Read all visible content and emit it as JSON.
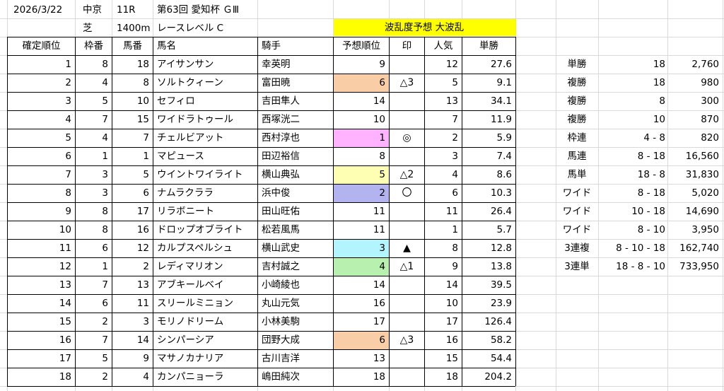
{
  "header": {
    "date": "2026/3/22",
    "venue": "中京",
    "race_no": "11R",
    "race_name": "第63回 愛知杯 ＧⅢ",
    "surface": "芝",
    "distance": "1400m",
    "race_level": "レースレベル C",
    "forecast_banner": "波乱度予想 大波乱"
  },
  "columns": [
    "確定順位",
    "枠番",
    "馬番",
    "馬名",
    "騎手",
    "予想順位",
    "印",
    "人気",
    "単勝"
  ],
  "rows": [
    {
      "finish": "1",
      "waku": "8",
      "umaban": "18",
      "horse": "アイサンサン",
      "jockey": "幸英明",
      "pred": "9",
      "mark": "",
      "pop": "12",
      "odds": "27.6",
      "pred_color": ""
    },
    {
      "finish": "2",
      "waku": "4",
      "umaban": "8",
      "horse": "ソルトクィーン",
      "jockey": "富田暁",
      "pred": "6",
      "mark": "△3",
      "pop": "5",
      "odds": "9.1",
      "pred_color": "#f9cda6"
    },
    {
      "finish": "3",
      "waku": "5",
      "umaban": "10",
      "horse": "セフィロ",
      "jockey": "吉田隼人",
      "pred": "14",
      "mark": "",
      "pop": "13",
      "odds": "34.1",
      "pred_color": ""
    },
    {
      "finish": "4",
      "waku": "7",
      "umaban": "15",
      "horse": "ワイドラトゥール",
      "jockey": "西塚洸二",
      "pred": "10",
      "mark": "",
      "pop": "7",
      "odds": "11.9",
      "pred_color": ""
    },
    {
      "finish": "5",
      "waku": "4",
      "umaban": "7",
      "horse": "チェルビアット",
      "jockey": "西村淳也",
      "pred": "1",
      "mark": "◎",
      "pop": "2",
      "odds": "5.9",
      "pred_color": "#ffb3ff"
    },
    {
      "finish": "6",
      "waku": "1",
      "umaban": "1",
      "horse": "マピュース",
      "jockey": "田辺裕信",
      "pred": "8",
      "mark": "",
      "pop": "3",
      "odds": "7.4",
      "pred_color": ""
    },
    {
      "finish": "7",
      "waku": "3",
      "umaban": "5",
      "horse": "ウイントワイライト",
      "jockey": "横山典弘",
      "pred": "5",
      "mark": "△2",
      "pop": "4",
      "odds": "8.6",
      "pred_color": "#ffffb3"
    },
    {
      "finish": "8",
      "waku": "3",
      "umaban": "6",
      "horse": "ナムラクララ",
      "jockey": "浜中俊",
      "pred": "2",
      "mark": "〇",
      "pop": "6",
      "odds": "10.3",
      "pred_color": "#b3b3f0"
    },
    {
      "finish": "9",
      "waku": "8",
      "umaban": "17",
      "horse": "リラボニート",
      "jockey": "田山旺佑",
      "pred": "11",
      "mark": "",
      "pop": "11",
      "odds": "26.4",
      "pred_color": ""
    },
    {
      "finish": "10",
      "waku": "8",
      "umaban": "16",
      "horse": "ドロップオブライト",
      "jockey": "松若風馬",
      "pred": "11",
      "mark": "",
      "pop": "1",
      "odds": "5.7",
      "pred_color": ""
    },
    {
      "finish": "11",
      "waku": "6",
      "umaban": "12",
      "horse": "カルプスペルシュ",
      "jockey": "横山武史",
      "pred": "3",
      "mark": "▲",
      "pop": "8",
      "odds": "12.8",
      "pred_color": "#b3f5ff"
    },
    {
      "finish": "12",
      "waku": "1",
      "umaban": "2",
      "horse": "レディマリオン",
      "jockey": "吉村誠之",
      "pred": "4",
      "mark": "△1",
      "pop": "9",
      "odds": "13.8",
      "pred_color": "#b8f0b0"
    },
    {
      "finish": "13",
      "waku": "7",
      "umaban": "13",
      "horse": "アブキールベイ",
      "jockey": "小崎綾也",
      "pred": "14",
      "mark": "",
      "pop": "14",
      "odds": "39.5",
      "pred_color": ""
    },
    {
      "finish": "14",
      "waku": "6",
      "umaban": "11",
      "horse": "スリールミニョン",
      "jockey": "丸山元気",
      "pred": "16",
      "mark": "",
      "pop": "10",
      "odds": "23.9",
      "pred_color": ""
    },
    {
      "finish": "15",
      "waku": "2",
      "umaban": "3",
      "horse": "モリノドリーム",
      "jockey": "小林美駒",
      "pred": "17",
      "mark": "",
      "pop": "17",
      "odds": "126.4",
      "pred_color": ""
    },
    {
      "finish": "16",
      "waku": "7",
      "umaban": "14",
      "horse": "シンパーシア",
      "jockey": "団野大成",
      "pred": "6",
      "mark": "△3",
      "pop": "16",
      "odds": "58.2",
      "pred_color": "#f9cda6"
    },
    {
      "finish": "17",
      "waku": "5",
      "umaban": "9",
      "horse": "マサノカナリア",
      "jockey": "古川吉洋",
      "pred": "13",
      "mark": "",
      "pop": "15",
      "odds": "54.4",
      "pred_color": ""
    },
    {
      "finish": "18",
      "waku": "2",
      "umaban": "4",
      "horse": "カンパニョーラ",
      "jockey": "嶋田純次",
      "pred": "18",
      "mark": "",
      "pop": "18",
      "odds": "204.2",
      "pred_color": ""
    }
  ],
  "payouts": [
    {
      "type": "単勝",
      "combo": "18",
      "amount": "2,760"
    },
    {
      "type": "複勝",
      "combo": "18",
      "amount": "980"
    },
    {
      "type": "複勝",
      "combo": "8",
      "amount": "300"
    },
    {
      "type": "複勝",
      "combo": "10",
      "amount": "870"
    },
    {
      "type": "枠連",
      "combo": "4 - 8",
      "amount": "820"
    },
    {
      "type": "馬連",
      "combo": "8 - 18",
      "amount": "16,560"
    },
    {
      "type": "馬単",
      "combo": "18 - 8",
      "amount": "31,830"
    },
    {
      "type": "ワイド",
      "combo": "8 - 18",
      "amount": "5,020"
    },
    {
      "type": "ワイド",
      "combo": "10 - 18",
      "amount": "14,690"
    },
    {
      "type": "ワイド",
      "combo": "8 - 10",
      "amount": "3,950"
    },
    {
      "type": "3連複",
      "combo": "8 - 10 - 18",
      "amount": "162,740"
    },
    {
      "type": "3連単",
      "combo": "18 - 8 - 10",
      "amount": "733,950"
    }
  ],
  "colors": {
    "grid_line": "#d9d9d9",
    "banner": "#ffff00",
    "table_border": "#000000"
  }
}
